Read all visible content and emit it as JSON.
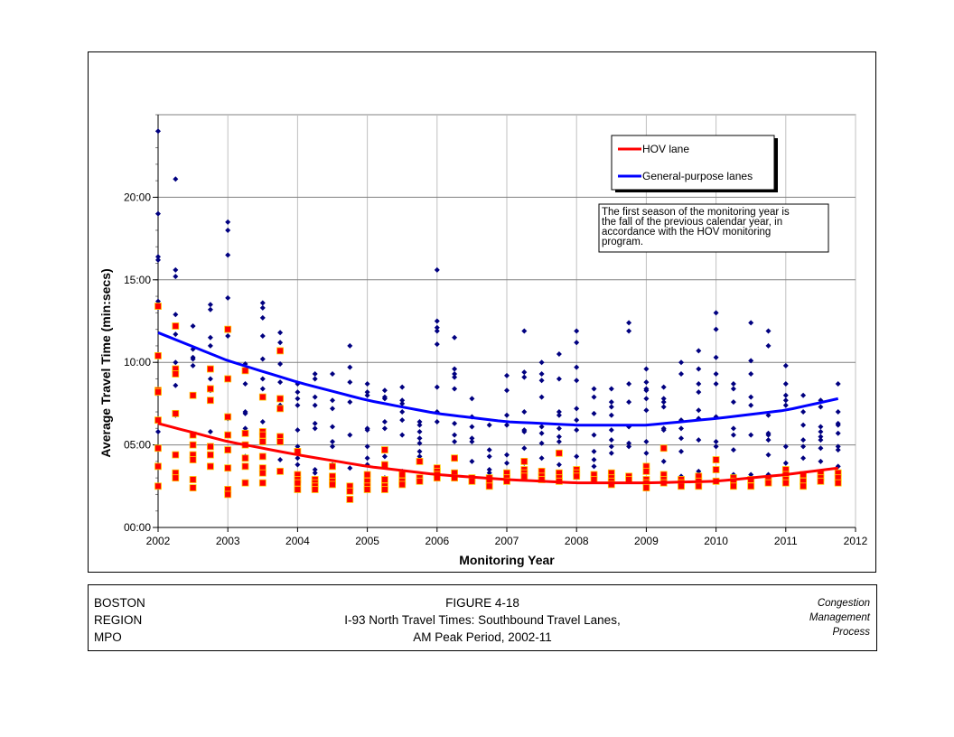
{
  "chart_data": {
    "type": "scatter",
    "xlabel": "Monitoring Year",
    "ylabel": "Average Travel Time (min:secs)",
    "xlim": [
      2002,
      2012
    ],
    "ylim": [
      0,
      25
    ],
    "y_units": "minutes",
    "x_ticks": [
      "2002",
      "2003",
      "2004",
      "2005",
      "2006",
      "2007",
      "2008",
      "2009",
      "2010",
      "2011",
      "2012"
    ],
    "y_ticks": [
      {
        "value": 0,
        "label": "00:00"
      },
      {
        "value": 5,
        "label": "05:00"
      },
      {
        "value": 10,
        "label": "10:00"
      },
      {
        "value": 15,
        "label": "15:00"
      },
      {
        "value": 20,
        "label": "20:00"
      }
    ],
    "grid": true,
    "legend": {
      "placement": "top-right",
      "entries": [
        "HOV lane",
        "General-purpose lanes"
      ]
    },
    "annotation": "The first season of the monitoring year is the fall of the previous calendar year, in accordance with the HOV monitoring program.",
    "series": [
      {
        "name": "General-purpose lanes",
        "color": "#000080",
        "marker": "diamond",
        "trend_color": "#0000ff",
        "points": [
          {
            "x": 2002.0,
            "y": [
              24.0,
              19.0,
              16.4,
              16.2,
              13.7,
              13.3,
              5.8
            ]
          },
          {
            "x": 2002.25,
            "y": [
              21.1,
              15.6,
              15.2,
              12.9,
              11.7,
              10.0,
              8.6,
              6.8
            ]
          },
          {
            "x": 2002.5,
            "y": [
              12.2,
              10.8,
              10.3,
              10.2,
              9.8,
              8.0
            ]
          },
          {
            "x": 2002.75,
            "y": [
              13.5,
              13.2,
              11.5,
              11.0,
              9.0,
              8.4,
              8.3,
              5.8
            ]
          },
          {
            "x": 2003.0,
            "y": [
              18.5,
              18.0,
              16.5,
              13.9,
              12.0,
              11.6,
              9.0,
              6.6
            ]
          },
          {
            "x": 2003.25,
            "y": [
              9.9,
              8.7,
              7.0,
              6.9,
              6.0,
              5.8,
              4.3
            ]
          },
          {
            "x": 2003.5,
            "y": [
              13.6,
              13.3,
              12.7,
              11.6,
              10.2,
              9.0,
              8.4,
              6.4
            ]
          },
          {
            "x": 2003.75,
            "y": [
              11.8,
              11.2,
              9.9,
              8.8,
              7.8,
              7.4,
              4.1
            ]
          },
          {
            "x": 2004.0,
            "y": [
              8.7,
              8.2,
              7.8,
              7.4,
              5.9,
              4.9,
              4.2,
              3.8
            ]
          },
          {
            "x": 2004.25,
            "y": [
              9.3,
              9.0,
              7.9,
              7.4,
              6.3,
              6.0,
              3.5,
              3.3
            ]
          },
          {
            "x": 2004.5,
            "y": [
              9.3,
              7.7,
              7.2,
              6.1,
              5.2,
              4.9,
              3.8
            ]
          },
          {
            "x": 2004.75,
            "y": [
              11.0,
              9.7,
              8.8,
              7.6,
              5.6,
              3.6,
              2.3
            ]
          },
          {
            "x": 2005.0,
            "y": [
              8.7,
              8.2,
              8.0,
              6.0,
              5.9,
              4.9,
              4.2,
              3.8
            ]
          },
          {
            "x": 2005.25,
            "y": [
              8.3,
              7.9,
              7.8,
              6.4,
              6.0,
              4.3,
              3.0
            ]
          },
          {
            "x": 2005.5,
            "y": [
              8.5,
              7.7,
              7.5,
              7.0,
              6.5,
              5.6,
              3.4
            ]
          },
          {
            "x": 2005.75,
            "y": [
              6.4,
              6.2,
              5.8,
              5.4,
              5.1,
              4.6,
              4.3
            ]
          },
          {
            "x": 2006.0,
            "y": [
              15.6,
              12.5,
              12.1,
              11.9,
              11.1,
              8.5,
              7.0,
              6.4
            ]
          },
          {
            "x": 2006.25,
            "y": [
              11.5,
              9.6,
              9.3,
              9.1,
              8.4,
              6.3,
              5.6,
              5.2
            ]
          },
          {
            "x": 2006.5,
            "y": [
              7.8,
              6.7,
              6.1,
              5.4,
              5.2,
              4.0
            ]
          },
          {
            "x": 2006.75,
            "y": [
              6.2,
              4.7,
              4.3,
              3.5,
              3.3
            ]
          },
          {
            "x": 2007.0,
            "y": [
              9.2,
              8.3,
              6.8,
              6.2,
              4.4,
              3.9
            ]
          },
          {
            "x": 2007.25,
            "y": [
              11.9,
              9.4,
              9.1,
              7.0,
              5.9,
              5.8,
              4.8,
              3.9
            ]
          },
          {
            "x": 2007.5,
            "y": [
              10.0,
              9.3,
              8.9,
              7.9,
              6.1,
              5.7,
              5.1,
              4.2
            ]
          },
          {
            "x": 2007.75,
            "y": [
              10.5,
              9.0,
              7.0,
              6.8,
              6.0,
              5.5,
              5.2,
              3.8
            ]
          },
          {
            "x": 2008.0,
            "y": [
              11.9,
              11.2,
              9.7,
              8.9,
              7.2,
              6.5,
              5.9,
              4.3
            ]
          },
          {
            "x": 2008.25,
            "y": [
              8.4,
              7.9,
              6.9,
              5.6,
              4.6,
              4.1,
              3.7
            ]
          },
          {
            "x": 2008.5,
            "y": [
              8.4,
              7.6,
              7.3,
              6.8,
              5.9,
              5.3,
              4.9,
              4.5
            ]
          },
          {
            "x": 2008.75,
            "y": [
              12.4,
              11.9,
              8.7,
              7.6,
              6.1,
              5.1,
              4.9
            ]
          },
          {
            "x": 2009.0,
            "y": [
              9.6,
              8.8,
              8.4,
              8.3,
              7.8,
              7.1,
              5.2,
              4.5
            ]
          },
          {
            "x": 2009.25,
            "y": [
              8.5,
              7.8,
              7.6,
              7.3,
              6.0,
              5.9,
              4.0
            ]
          },
          {
            "x": 2009.5,
            "y": [
              10.0,
              9.3,
              6.5,
              6.0,
              5.4,
              4.6,
              3.1
            ]
          },
          {
            "x": 2009.75,
            "y": [
              10.7,
              9.6,
              8.7,
              8.2,
              7.1,
              6.6,
              5.3,
              3.4
            ]
          },
          {
            "x": 2010.0,
            "y": [
              13.0,
              12.0,
              10.3,
              9.3,
              8.7,
              6.7,
              5.2,
              4.9
            ]
          },
          {
            "x": 2010.25,
            "y": [
              8.7,
              8.4,
              7.6,
              6.0,
              5.6,
              4.7,
              3.2
            ]
          },
          {
            "x": 2010.5,
            "y": [
              12.4,
              10.1,
              9.3,
              7.9,
              7.4,
              5.6,
              3.2
            ]
          },
          {
            "x": 2010.75,
            "y": [
              11.9,
              11.0,
              6.8,
              5.7,
              5.6,
              5.3,
              4.4,
              3.2
            ]
          },
          {
            "x": 2011.0,
            "y": [
              9.8,
              8.7,
              8.0,
              7.7,
              7.4,
              4.9,
              3.9
            ]
          },
          {
            "x": 2011.25,
            "y": [
              8.0,
              7.0,
              6.2,
              5.3,
              4.9,
              4.2
            ]
          },
          {
            "x": 2011.5,
            "y": [
              7.7,
              7.3,
              6.1,
              5.8,
              5.5,
              5.3,
              4.8,
              4.0
            ]
          },
          {
            "x": 2011.75,
            "y": [
              8.7,
              7.0,
              6.3,
              6.2,
              5.7,
              4.9,
              4.7,
              3.7
            ]
          }
        ],
        "trend": [
          [
            2002,
            11.8
          ],
          [
            2003,
            10.1
          ],
          [
            2004,
            8.8
          ],
          [
            2005,
            7.7
          ],
          [
            2006,
            6.9
          ],
          [
            2007,
            6.4
          ],
          [
            2008,
            6.2
          ],
          [
            2009,
            6.2
          ],
          [
            2010,
            6.6
          ],
          [
            2011,
            7.1
          ],
          [
            2011.75,
            7.8
          ]
        ]
      },
      {
        "name": "HOV lane",
        "color": "#ff0000",
        "edge_color": "#ffcc00",
        "marker": "square",
        "trend_color": "#ff0000",
        "points": [
          {
            "x": 2002.0,
            "y": [
              13.4,
              10.4,
              8.3,
              8.2,
              6.5,
              4.8,
              3.7,
              2.5
            ]
          },
          {
            "x": 2002.25,
            "y": [
              12.2,
              9.6,
              9.3,
              6.9,
              4.4,
              3.3,
              3.0
            ]
          },
          {
            "x": 2002.5,
            "y": [
              8.0,
              5.6,
              5.0,
              4.4,
              4.1,
              2.9,
              2.4
            ]
          },
          {
            "x": 2002.75,
            "y": [
              9.6,
              8.4,
              7.7,
              4.9,
              4.4,
              3.7
            ]
          },
          {
            "x": 2003.0,
            "y": [
              12.0,
              9.0,
              6.7,
              5.6,
              4.7,
              3.6,
              2.3,
              2.0
            ]
          },
          {
            "x": 2003.25,
            "y": [
              9.5,
              5.7,
              5.0,
              4.2,
              3.7,
              2.7
            ]
          },
          {
            "x": 2003.5,
            "y": [
              7.9,
              5.8,
              5.6,
              5.2,
              4.3,
              3.6,
              3.3,
              2.7
            ]
          },
          {
            "x": 2003.75,
            "y": [
              10.7,
              7.8,
              7.2,
              5.5,
              5.2,
              3.4
            ]
          },
          {
            "x": 2004.0,
            "y": [
              4.6,
              3.2,
              2.9,
              2.7,
              2.3
            ]
          },
          {
            "x": 2004.25,
            "y": [
              2.9,
              2.7,
              2.5,
              2.3
            ]
          },
          {
            "x": 2004.5,
            "y": [
              3.7,
              3.1,
              2.8,
              2.6
            ]
          },
          {
            "x": 2004.75,
            "y": [
              2.5,
              2.2,
              1.7
            ]
          },
          {
            "x": 2005.0,
            "y": [
              3.2,
              2.8,
              2.5,
              2.3
            ]
          },
          {
            "x": 2005.25,
            "y": [
              4.7,
              3.8,
              2.9,
              2.5,
              2.3
            ]
          },
          {
            "x": 2005.5,
            "y": [
              3.2,
              2.8,
              2.6
            ]
          },
          {
            "x": 2005.75,
            "y": [
              4.0,
              3.0,
              2.8
            ]
          },
          {
            "x": 2006.0,
            "y": [
              3.6,
              3.4,
              3.2,
              3.0
            ]
          },
          {
            "x": 2006.25,
            "y": [
              4.2,
              3.3,
              3.0
            ]
          },
          {
            "x": 2006.5,
            "y": [
              3.0,
              2.8
            ]
          },
          {
            "x": 2006.75,
            "y": [
              3.0,
              2.8,
              2.5
            ]
          },
          {
            "x": 2007.0,
            "y": [
              3.3,
              3.0,
              2.8
            ]
          },
          {
            "x": 2007.25,
            "y": [
              4.0,
              3.5,
              3.3,
              3.1
            ]
          },
          {
            "x": 2007.5,
            "y": [
              3.4,
              3.1,
              2.9
            ]
          },
          {
            "x": 2007.75,
            "y": [
              4.5,
              3.3,
              3.0,
              2.8
            ]
          },
          {
            "x": 2008.0,
            "y": [
              3.5,
              3.3,
              3.1
            ]
          },
          {
            "x": 2008.25,
            "y": [
              3.2,
              2.9
            ]
          },
          {
            "x": 2008.5,
            "y": [
              3.3,
              3.0,
              2.8,
              2.6
            ]
          },
          {
            "x": 2008.75,
            "y": [
              3.1,
              2.9
            ]
          },
          {
            "x": 2009.0,
            "y": [
              3.7,
              3.4,
              2.9,
              2.7,
              2.4
            ]
          },
          {
            "x": 2009.25,
            "y": [
              4.8,
              3.2,
              2.9,
              2.7
            ]
          },
          {
            "x": 2009.5,
            "y": [
              2.9,
              2.7,
              2.5
            ]
          },
          {
            "x": 2009.75,
            "y": [
              3.1,
              2.8,
              2.5
            ]
          },
          {
            "x": 2010.0,
            "y": [
              4.1,
              3.5,
              2.8
            ]
          },
          {
            "x": 2010.25,
            "y": [
              3.0,
              2.8,
              2.5
            ]
          },
          {
            "x": 2010.5,
            "y": [
              2.9,
              2.5
            ]
          },
          {
            "x": 2010.75,
            "y": [
              2.9,
              2.7
            ]
          },
          {
            "x": 2011.0,
            "y": [
              3.5,
              3.2,
              2.9,
              2.7
            ]
          },
          {
            "x": 2011.25,
            "y": [
              3.2,
              2.8,
              2.5
            ]
          },
          {
            "x": 2011.5,
            "y": [
              3.3,
              3.0,
              2.8
            ]
          },
          {
            "x": 2011.75,
            "y": [
              3.3,
              3.0,
              2.7
            ]
          }
        ],
        "trend": [
          [
            2002,
            6.3
          ],
          [
            2003,
            5.2
          ],
          [
            2004,
            4.4
          ],
          [
            2005,
            3.7
          ],
          [
            2006,
            3.2
          ],
          [
            2007,
            2.9
          ],
          [
            2008,
            2.7
          ],
          [
            2009,
            2.7
          ],
          [
            2010,
            2.8
          ],
          [
            2011,
            3.2
          ],
          [
            2011.75,
            3.6
          ]
        ]
      }
    ]
  },
  "footer": {
    "left": [
      "BOSTON",
      "REGION",
      "MPO"
    ],
    "center": [
      "FIGURE 4-18",
      "I-93 North Travel Times: Southbound Travel Lanes,",
      "AM Peak Period, 2002-11"
    ],
    "right": [
      "Congestion",
      "Management",
      "Process"
    ]
  }
}
